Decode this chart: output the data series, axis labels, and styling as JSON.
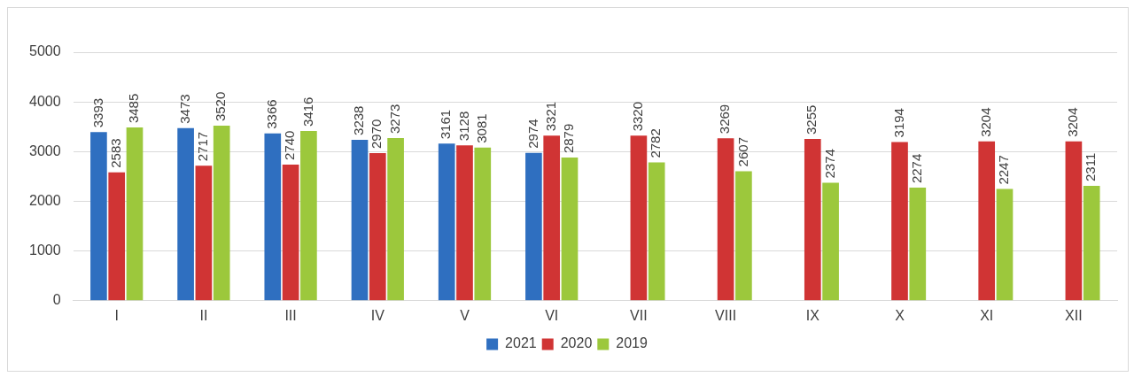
{
  "chart_data": {
    "type": "bar",
    "categories": [
      "I",
      "II",
      "III",
      "IV",
      "V",
      "VI",
      "VII",
      "VIII",
      "IX",
      "X",
      "XI",
      "XII"
    ],
    "series": [
      {
        "name": "2021",
        "color": "#2f6fc0",
        "values": [
          3393,
          3473,
          3366,
          3238,
          3161,
          2974,
          null,
          null,
          null,
          null,
          null,
          null
        ]
      },
      {
        "name": "2020",
        "color": "#d03434",
        "values": [
          2583,
          2717,
          2740,
          2970,
          3128,
          3321,
          3320,
          3269,
          3255,
          3194,
          3204,
          3204
        ]
      },
      {
        "name": "2019",
        "color": "#9cc83c",
        "values": [
          3485,
          3520,
          3416,
          3273,
          3081,
          2879,
          2782,
          2607,
          2374,
          2274,
          2247,
          2311
        ]
      }
    ],
    "ylim": [
      0,
      5000
    ],
    "yticks": [
      0,
      1000,
      2000,
      3000,
      4000,
      5000
    ],
    "grid": "y",
    "legend": "bottom",
    "data_labels": true
  }
}
